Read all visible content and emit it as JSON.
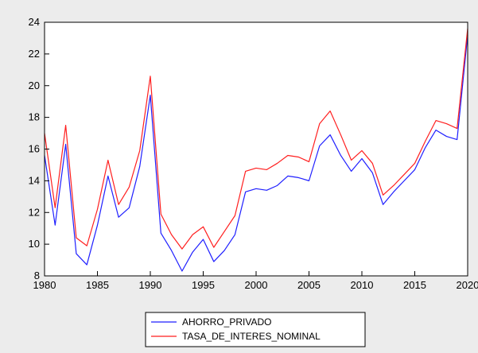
{
  "chart_data": {
    "type": "line",
    "title": "",
    "xlabel": "",
    "ylabel": "",
    "xlim": [
      1980,
      2020
    ],
    "ylim": [
      8,
      24
    ],
    "x_ticks": [
      1980,
      1985,
      1990,
      1995,
      2000,
      2005,
      2010,
      2015,
      2020
    ],
    "y_ticks": [
      8,
      10,
      12,
      14,
      16,
      18,
      20,
      22,
      24
    ],
    "grid": false,
    "legend_placement": "bottom-center",
    "x": [
      1980,
      1981,
      1982,
      1983,
      1984,
      1985,
      1986,
      1987,
      1988,
      1989,
      1990,
      1991,
      1992,
      1993,
      1994,
      1995,
      1996,
      1997,
      1998,
      1999,
      2000,
      2001,
      2002,
      2003,
      2004,
      2005,
      2006,
      2007,
      2008,
      2009,
      2010,
      2011,
      2012,
      2013,
      2014,
      2015,
      2016,
      2017,
      2018,
      2019,
      2020
    ],
    "series": [
      {
        "name": "AHORRO_PRIVADO",
        "color": "#1f1fff",
        "values": [
          15.6,
          11.2,
          16.3,
          9.4,
          8.7,
          11.2,
          14.3,
          11.7,
          12.3,
          14.9,
          19.4,
          10.7,
          9.6,
          8.3,
          9.5,
          10.3,
          8.9,
          9.6,
          10.6,
          13.3,
          13.5,
          13.4,
          13.7,
          14.3,
          14.2,
          14.0,
          16.2,
          16.9,
          15.6,
          14.6,
          15.4,
          14.5,
          12.5,
          13.3,
          14.0,
          14.7,
          16.1,
          17.2,
          16.8,
          16.6,
          23.2
        ]
      },
      {
        "name": "TASA_DE_INTERES_NOMINAL",
        "color": "#ff1f1f",
        "values": [
          17.0,
          12.3,
          17.5,
          10.4,
          9.9,
          12.2,
          15.3,
          12.5,
          13.6,
          15.9,
          20.6,
          11.9,
          10.6,
          9.7,
          10.6,
          11.1,
          9.8,
          10.8,
          11.8,
          14.6,
          14.8,
          14.7,
          15.1,
          15.6,
          15.5,
          15.2,
          17.6,
          18.4,
          16.9,
          15.3,
          15.9,
          15.1,
          13.1,
          13.7,
          14.4,
          15.1,
          16.5,
          17.8,
          17.6,
          17.3,
          23.6
        ]
      }
    ]
  }
}
